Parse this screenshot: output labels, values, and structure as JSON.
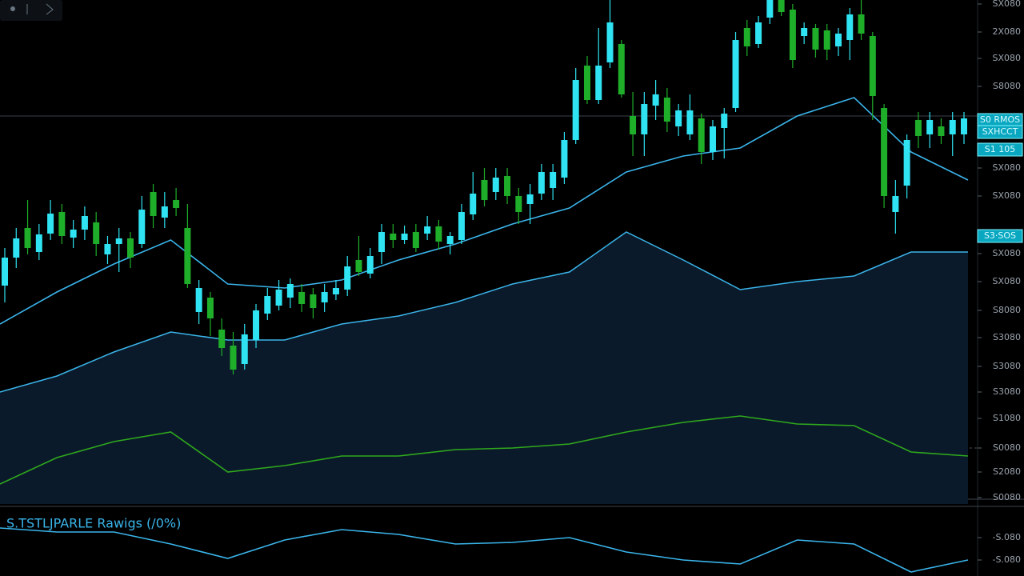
{
  "chart_data": {
    "type": "candlestick",
    "up_color": "#2fe3f2",
    "down_color": "#1fae2a",
    "open": [
      273,
      308,
      345,
      315,
      338,
      365,
      333,
      343,
      352,
      312,
      325,
      332,
      325,
      390,
      358,
      380,
      345,
      240,
      258,
      218,
      198,
      175,
      205,
      238,
      248,
      258,
      265,
      262,
      252,
      262,
      268,
      305,
      288,
      315,
      338,
      330,
      340,
      338,
      347,
      325,
      330,
      362,
      405,
      390,
      410,
      385,
      375,
      388,
      395,
      408,
      455,
      548,
      505,
      552,
      575,
      485,
      462,
      498,
      508,
      472,
      462,
      482,
      440,
      470,
      495,
      595,
      575,
      608,
      630,
      618,
      585,
      595,
      592,
      572,
      580,
      612,
      585,
      495,
      365,
      398,
      480,
      462,
      472,
      462,
      462
    ],
    "high": [
      320,
      345,
      380,
      350,
      380,
      375,
      355,
      372,
      365,
      335,
      345,
      340,
      385,
      400,
      390,
      395,
      375,
      280,
      265,
      232,
      215,
      225,
      250,
      270,
      280,
      282,
      275,
      270,
      275,
      280,
      310,
      335,
      320,
      350,
      350,
      348,
      350,
      360,
      355,
      340,
      375,
      415,
      420,
      420,
      420,
      395,
      400,
      425,
      425,
      465,
      545,
      560,
      595,
      630,
      580,
      515,
      515,
      530,
      520,
      500,
      512,
      488,
      480,
      495,
      590,
      605,
      610,
      630,
      630,
      625,
      602,
      600,
      600,
      595,
      620,
      630,
      590,
      500,
      405,
      462,
      490,
      490,
      482,
      490,
      490
    ],
    "low": [
      252,
      295,
      312,
      305,
      330,
      325,
      320,
      330,
      310,
      300,
      290,
      295,
      320,
      345,
      345,
      360,
      270,
      225,
      210,
      185,
      162,
      168,
      195,
      230,
      242,
      245,
      240,
      232,
      240,
      255,
      260,
      285,
      282,
      300,
      320,
      325,
      315,
      330,
      318,
      312,
      325,
      355,
      372,
      380,
      375,
      350,
      350,
      380,
      380,
      400,
      450,
      500,
      500,
      545,
      508,
      435,
      435,
      480,
      465,
      460,
      455,
      425,
      430,
      432,
      490,
      560,
      570,
      600,
      610,
      545,
      575,
      558,
      555,
      560,
      555,
      580,
      480,
      370,
      338,
      382,
      445,
      445,
      450,
      435,
      450
    ],
    "close": [
      308,
      332,
      320,
      337,
      363,
      335,
      343,
      360,
      325,
      325,
      332,
      308,
      368,
      360,
      372,
      370,
      275,
      270,
      232,
      195,
      168,
      212,
      242,
      260,
      268,
      275,
      250,
      245,
      265,
      270,
      297,
      290,
      310,
      340,
      330,
      338,
      320,
      347,
      328,
      335,
      365,
      388,
      380,
      408,
      385,
      365,
      387,
      415,
      415,
      455,
      530,
      505,
      548,
      602,
      512,
      462,
      500,
      512,
      478,
      492,
      492,
      440,
      472,
      488,
      580,
      572,
      602,
      630,
      615,
      555,
      595,
      568,
      568,
      588,
      612,
      588,
      510,
      385,
      385,
      455,
      460,
      480,
      460,
      480,
      482
    ],
    "ylim": [
      0,
      630
    ],
    "yticks": [
      {
        "value": 625,
        "label": "SX080"
      },
      {
        "value": 590,
        "label": "2X080"
      },
      {
        "value": 557,
        "label": "SX080"
      },
      {
        "value": 522,
        "label": "S8080"
      },
      {
        "value": 420,
        "label": "SX080"
      },
      {
        "value": 385,
        "label": "SX080"
      },
      {
        "value": 313,
        "label": "SX080"
      },
      {
        "value": 278,
        "label": "SX080"
      },
      {
        "value": 242,
        "label": "S8080"
      },
      {
        "value": 208,
        "label": "S3080"
      },
      {
        "value": 172,
        "label": "S3080"
      },
      {
        "value": 140,
        "label": "S3080"
      },
      {
        "value": 107,
        "label": "S1080"
      },
      {
        "value": 70,
        "label": "S0080"
      },
      {
        "value": 40,
        "label": "S2080"
      },
      {
        "value": 8,
        "label": "S0080"
      }
    ],
    "price_tags": [
      {
        "value": 480,
        "label": "S0 RMOS"
      },
      {
        "value": 465,
        "label": "SXHCCT"
      },
      {
        "value": 443,
        "label": "S1 105"
      },
      {
        "value": 335,
        "label": "S3·SOS"
      }
    ],
    "lines": [
      {
        "color": "#3ab4ea",
        "values": [
          225,
          265,
          300,
          330,
          275,
          270,
          280,
          305,
          325,
          350,
          370,
          415,
          435,
          445,
          485,
          508,
          440,
          405
        ]
      },
      {
        "color": "#2ea81c",
        "values": [
          25,
          58,
          78,
          90,
          40,
          48,
          60,
          60,
          68,
          70,
          75,
          90,
          102,
          110,
          100,
          98,
          65,
          60
        ]
      }
    ],
    "area": {
      "color": "#3ab4ea",
      "fill": "#0b1a2a",
      "values": [
        140,
        160,
        190,
        215,
        205,
        205,
        225,
        235,
        252,
        275,
        290,
        340,
        305,
        268,
        278,
        285,
        315,
        315
      ]
    },
    "oscillator": {
      "title": "S.TSTLJPARLE Rawigs (/0%)",
      "color": "#3ab4ea",
      "values": [
        60,
        55,
        55,
        40,
        22,
        45,
        58,
        52,
        40,
        42,
        48,
        30,
        20,
        15,
        45,
        40,
        5,
        20
      ],
      "ylim": [
        0,
        80
      ],
      "yticks": [
        {
          "value": 48,
          "label": "-S.080"
        },
        {
          "value": 20,
          "label": "-S.080"
        }
      ]
    }
  }
}
